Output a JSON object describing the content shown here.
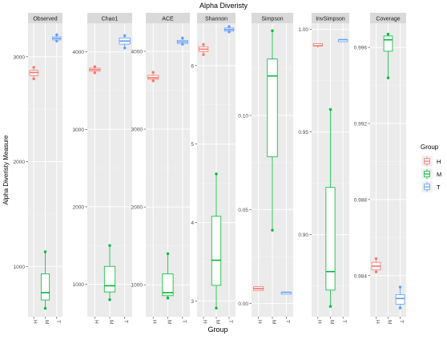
{
  "chart_data": {
    "type": "box",
    "title": "Alpha Diveristy",
    "xlabel": "Group",
    "ylabel": "Alpha Diveristy Measure",
    "groups": [
      "H",
      "M",
      "T"
    ],
    "colors": {
      "H": "#F8766D",
      "M": "#00BA38",
      "T": "#619CFF"
    },
    "legend": {
      "title": "Group",
      "position": "right",
      "entries": [
        "H",
        "M",
        "T"
      ]
    },
    "grid": true,
    "facets": [
      {
        "name": "Observed",
        "ylim": [
          520,
          3320
        ],
        "ticks": [
          1000,
          2000,
          3000
        ],
        "tick_labels": [
          "1000",
          "2000",
          "3000"
        ],
        "boxes": {
          "H": {
            "min": 2790,
            "q1": 2820,
            "median": 2850,
            "q3": 2870,
            "max": 2900,
            "points": [
              2790,
              2900
            ]
          },
          "M": {
            "min": 600,
            "q1": 680,
            "median": 750,
            "q3": 930,
            "max": 1140,
            "points": [
              600,
              1140
            ]
          },
          "T": {
            "min": 3150,
            "q1": 3160,
            "median": 3175,
            "q3": 3190,
            "max": 3210,
            "points": [
              3150,
              3210
            ]
          }
        }
      },
      {
        "name": "Chao1",
        "ylim": [
          580,
          4370
        ],
        "ticks": [
          1000,
          2000,
          3000,
          4000
        ],
        "tick_labels": [
          "1000",
          "2000",
          "3000",
          "4000"
        ],
        "boxes": {
          "H": {
            "min": 3730,
            "q1": 3750,
            "median": 3770,
            "q3": 3790,
            "max": 3810,
            "points": [
              3730,
              3810
            ]
          },
          "M": {
            "min": 800,
            "q1": 900,
            "median": 980,
            "q3": 1230,
            "max": 1500,
            "points": [
              800,
              1500
            ]
          },
          "T": {
            "min": 4050,
            "q1": 4100,
            "median": 4140,
            "q3": 4180,
            "max": 4210,
            "points": [
              4050,
              4210
            ]
          }
        }
      },
      {
        "name": "ACE",
        "ylim": [
          590,
          4360
        ],
        "ticks": [
          1000,
          2000,
          3000,
          4000
        ],
        "tick_labels": [
          "1000",
          "2000",
          "3000",
          "4000"
        ],
        "boxes": {
          "H": {
            "min": 3620,
            "q1": 3640,
            "median": 3660,
            "q3": 3690,
            "max": 3730,
            "points": [
              3620,
              3730
            ]
          },
          "M": {
            "min": 830,
            "q1": 860,
            "median": 900,
            "q3": 1140,
            "max": 1400,
            "points": [
              830,
              1400
            ]
          },
          "T": {
            "min": 4090,
            "q1": 4100,
            "median": 4120,
            "q3": 4140,
            "max": 4170,
            "points": [
              4090,
              4170
            ]
          }
        }
      },
      {
        "name": "Shannon",
        "ylim": [
          2.8,
          6.54
        ],
        "ticks": [
          3,
          4,
          5,
          6
        ],
        "tick_labels": [
          "3",
          "4",
          "5",
          "6"
        ],
        "boxes": {
          "H": {
            "min": 6.14,
            "q1": 6.18,
            "median": 6.21,
            "q3": 6.24,
            "max": 6.27,
            "points": [
              6.14,
              6.27
            ]
          },
          "M": {
            "min": 2.91,
            "q1": 3.2,
            "median": 3.52,
            "q3": 4.08,
            "max": 4.62,
            "points": [
              2.91,
              4.62
            ]
          },
          "T": {
            "min": 6.43,
            "q1": 6.44,
            "median": 6.46,
            "q3": 6.48,
            "max": 6.5,
            "points": [
              6.43,
              6.5
            ]
          }
        }
      },
      {
        "name": "Simpson",
        "ylim": [
          -0.007,
          0.149
        ],
        "ticks": [
          0.0,
          0.05,
          0.1
        ],
        "tick_labels": [
          "0.00",
          "0.05",
          "0.10"
        ],
        "boxes": {
          "H": {
            "min": 0.007,
            "q1": 0.007,
            "median": 0.008,
            "q3": 0.009,
            "max": 0.009,
            "points": []
          },
          "M": {
            "min": 0.039,
            "q1": 0.078,
            "median": 0.121,
            "q3": 0.13,
            "max": 0.145,
            "points": [
              0.039,
              0.145
            ]
          },
          "T": {
            "min": 0.005,
            "q1": 0.005,
            "median": 0.006,
            "q3": 0.006,
            "max": 0.006,
            "points": []
          }
        }
      },
      {
        "name": "InvSimpson",
        "ylim": [
          0.86,
          1.003
        ],
        "ticks": [
          0.9,
          0.95,
          1.0
        ],
        "tick_labels": [
          "0.90",
          "0.95",
          "1.00"
        ],
        "boxes": {
          "H": {
            "min": 0.991,
            "q1": 0.992,
            "median": 0.992,
            "q3": 0.993,
            "max": 0.993,
            "points": []
          },
          "M": {
            "min": 0.865,
            "q1": 0.873,
            "median": 0.882,
            "q3": 0.923,
            "max": 0.961,
            "points": [
              0.865,
              0.961
            ]
          },
          "T": {
            "min": 0.994,
            "q1": 0.994,
            "median": 0.995,
            "q3": 0.995,
            "max": 0.995,
            "points": []
          }
        }
      },
      {
        "name": "Coverage",
        "ylim": [
          0.98184,
          0.99727
        ],
        "ticks": [
          0.984,
          0.988,
          0.992,
          0.996
        ],
        "tick_labels": [
          "0.984",
          "0.988",
          "0.992",
          "0.996"
        ],
        "boxes": {
          "H": {
            "min": 0.9842,
            "q1": 0.9843,
            "median": 0.9845,
            "q3": 0.9847,
            "max": 0.9849,
            "points": [
              0.9842,
              0.9849
            ]
          },
          "M": {
            "min": 0.9944,
            "q1": 0.9958,
            "median": 0.9964,
            "q3": 0.9966,
            "max": 0.9967,
            "points": [
              0.9944,
              0.9967
            ]
          },
          "T": {
            "min": 0.9823,
            "q1": 0.9825,
            "median": 0.9828,
            "q3": 0.983,
            "max": 0.9834,
            "points": [
              0.9823,
              0.9834
            ]
          }
        }
      }
    ]
  }
}
